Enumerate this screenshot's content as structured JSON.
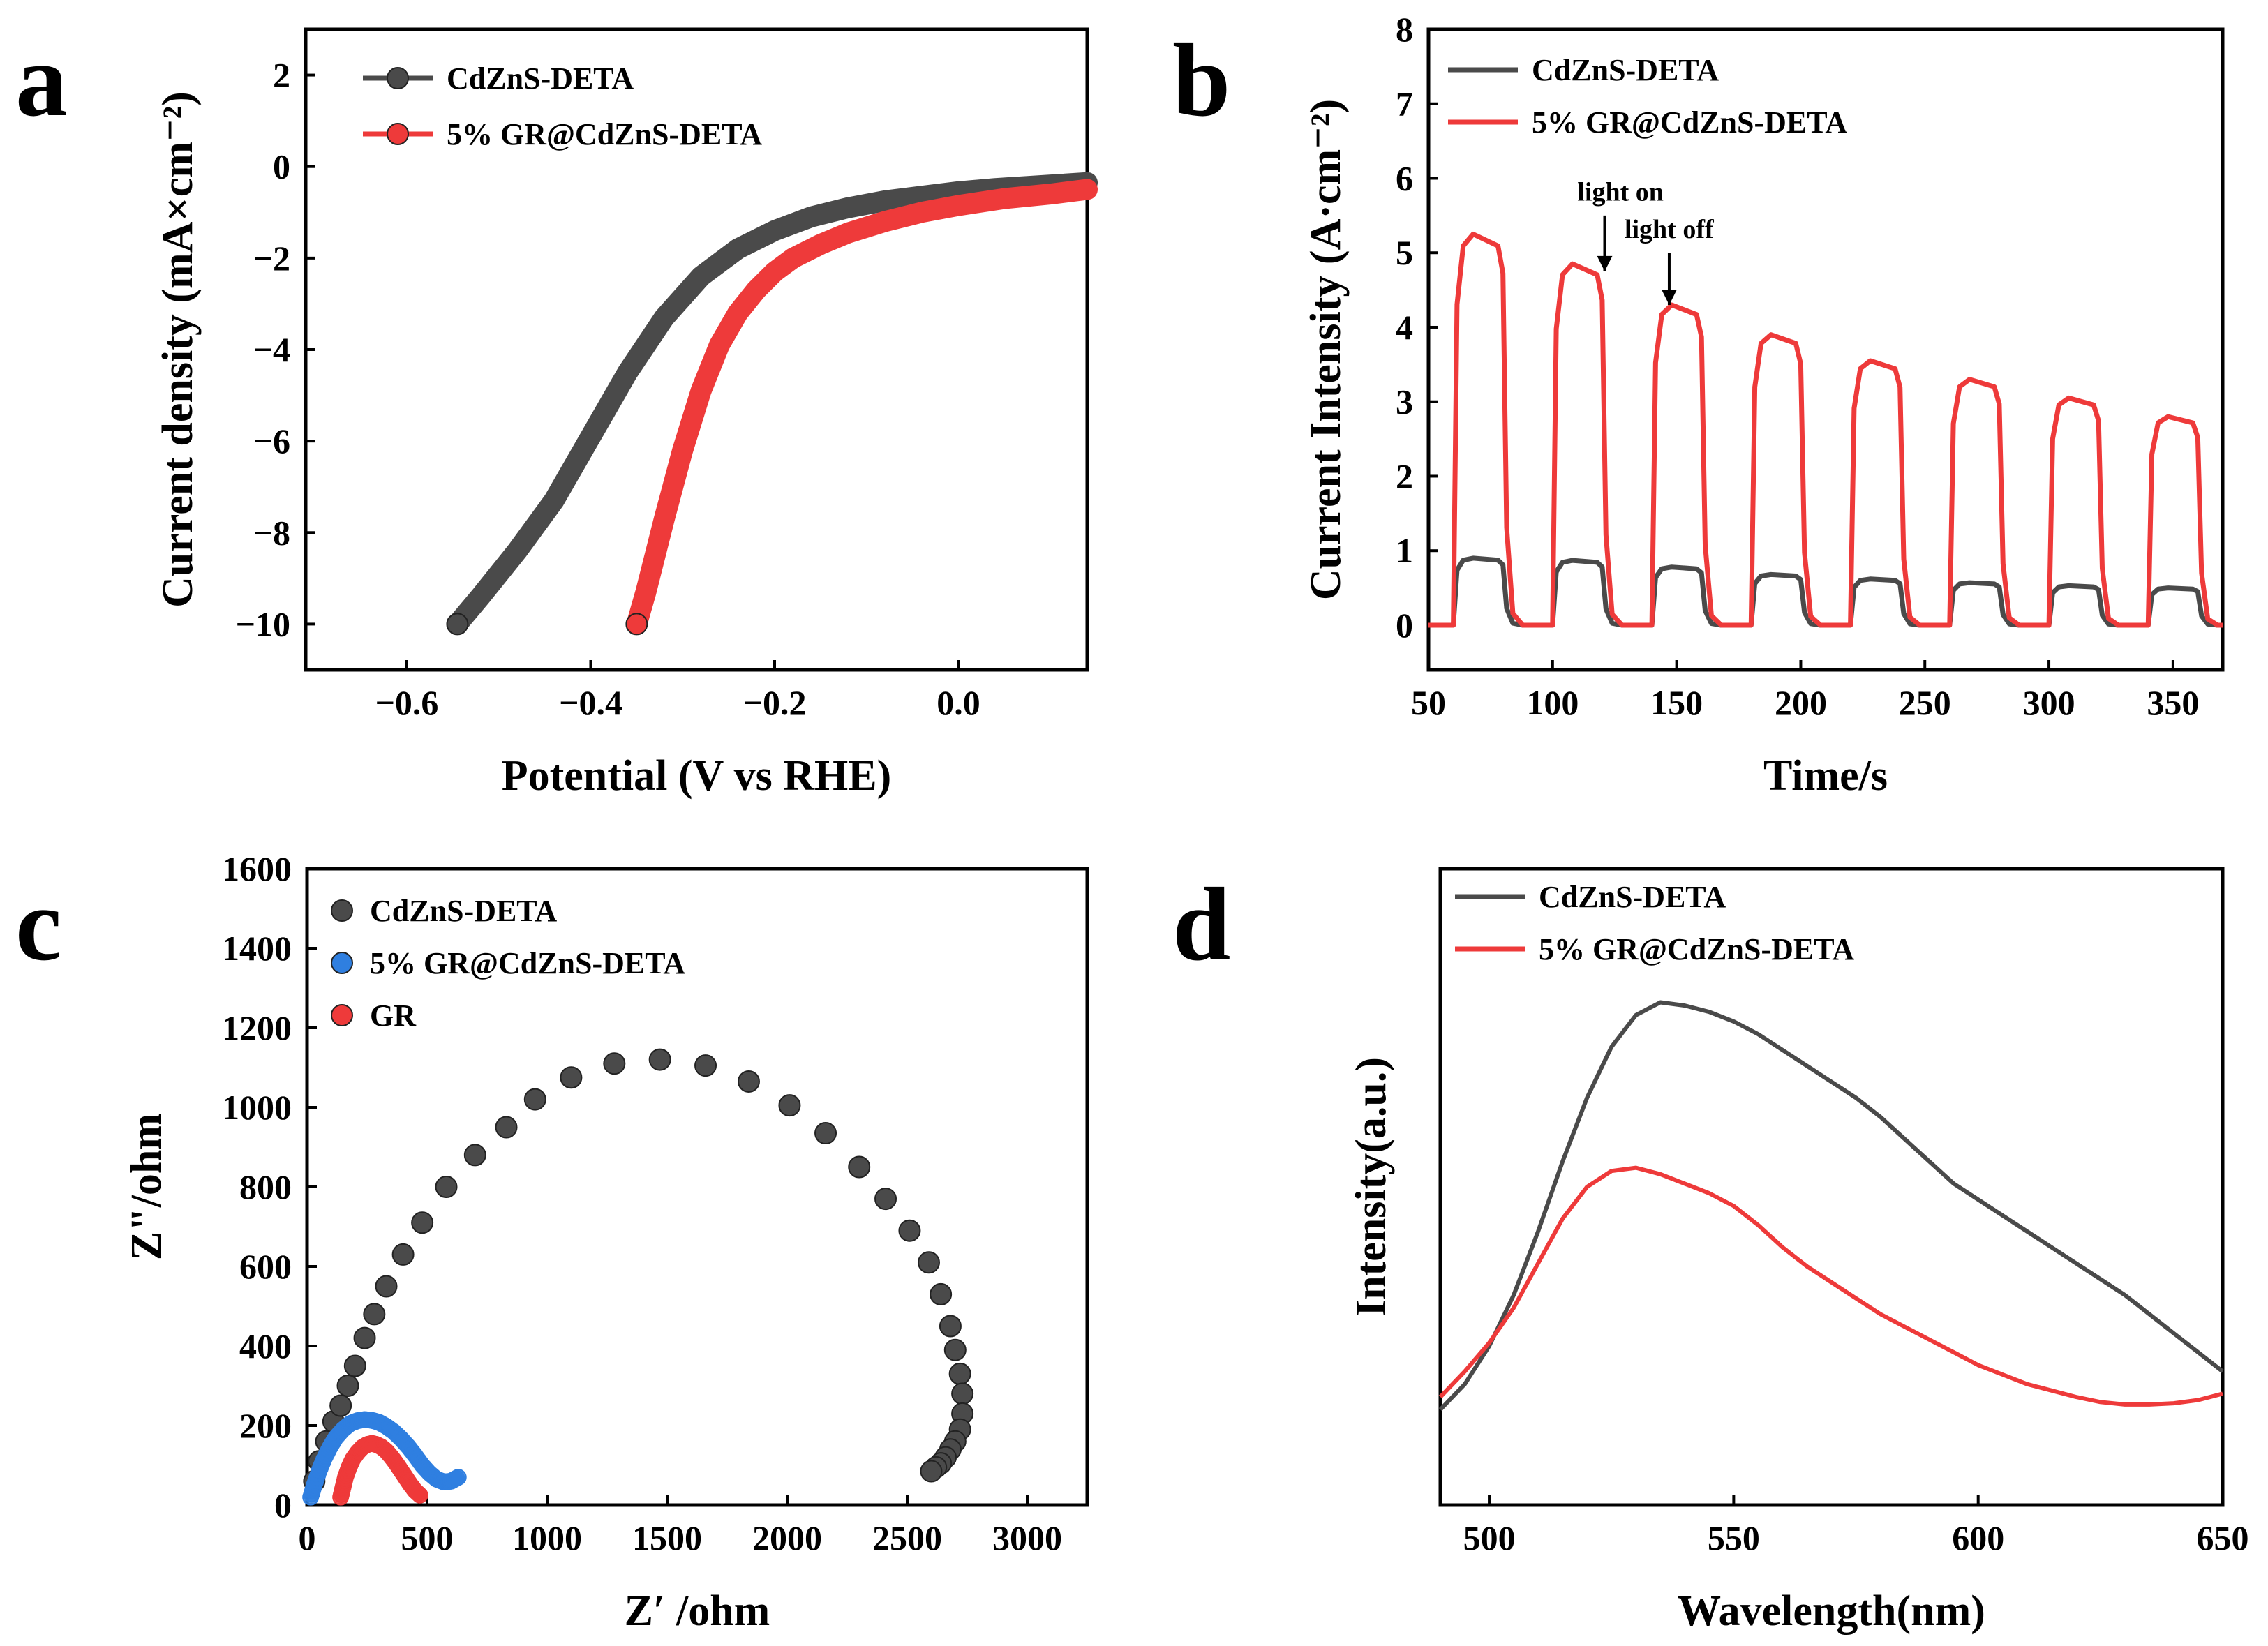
{
  "colors": {
    "gray": "#4a4a4a",
    "red": "#ee3a3a",
    "blue": "#2f7fe0",
    "frame": "#000000"
  },
  "chart_data": [
    {
      "panel": "a",
      "type": "line",
      "xlabel": "Potential (V vs RHE)",
      "ylabel": "Current density (mA×cm⁻²)",
      "xlim": [
        -0.71,
        0.14
      ],
      "ylim": [
        -11,
        3
      ],
      "xticks": [
        -0.6,
        -0.4,
        -0.2,
        0.0
      ],
      "xtick_labels": [
        "−0.6",
        "−0.4",
        "−0.2",
        "0.0"
      ],
      "yticks": [
        2,
        0,
        -2,
        -4,
        -6,
        -8,
        -10
      ],
      "ytick_labels": [
        "2",
        "0",
        "−2",
        "−4",
        "−6",
        "−8",
        "−10"
      ],
      "legend_position": "top-left",
      "series": [
        {
          "name": "CdZnS-DETA",
          "color": "gray",
          "x": [
            -0.545,
            -0.52,
            -0.48,
            -0.44,
            -0.4,
            -0.36,
            -0.32,
            -0.28,
            -0.24,
            -0.2,
            -0.16,
            -0.12,
            -0.08,
            -0.04,
            0.0,
            0.04,
            0.08,
            0.14
          ],
          "y": [
            -10.0,
            -9.4,
            -8.4,
            -7.3,
            -5.9,
            -4.5,
            -3.3,
            -2.4,
            -1.8,
            -1.4,
            -1.1,
            -0.9,
            -0.75,
            -0.65,
            -0.55,
            -0.48,
            -0.43,
            -0.35
          ]
        },
        {
          "name": "5% GR@CdZnS-DETA",
          "color": "red",
          "x": [
            -0.35,
            -0.34,
            -0.32,
            -0.3,
            -0.28,
            -0.26,
            -0.24,
            -0.22,
            -0.2,
            -0.18,
            -0.15,
            -0.12,
            -0.08,
            -0.04,
            0.0,
            0.05,
            0.1,
            0.14
          ],
          "y": [
            -10.0,
            -9.3,
            -7.7,
            -6.2,
            -4.9,
            -3.9,
            -3.2,
            -2.7,
            -2.3,
            -2.0,
            -1.7,
            -1.45,
            -1.2,
            -1.0,
            -0.85,
            -0.7,
            -0.6,
            -0.5
          ]
        }
      ]
    },
    {
      "panel": "b",
      "type": "line",
      "xlabel": "Time/s",
      "ylabel": "Current Intensity (A·cm⁻²)",
      "xlim": [
        50,
        370
      ],
      "ylim": [
        -0.6,
        8
      ],
      "xticks": [
        50,
        100,
        150,
        200,
        250,
        300,
        350
      ],
      "xtick_labels": [
        "50",
        "100",
        "150",
        "200",
        "250",
        "300",
        "350"
      ],
      "yticks": [
        0,
        1,
        2,
        3,
        4,
        5,
        6,
        7,
        8
      ],
      "ytick_labels": [
        "0",
        "1",
        "2",
        "3",
        "4",
        "5",
        "6",
        "7",
        "8"
      ],
      "legend_position": "top-left",
      "annotations": [
        {
          "text": "light on",
          "x": 121,
          "y": 4.75
        },
        {
          "text": "light off",
          "x": 147,
          "y": 4.3
        }
      ],
      "light_cycles": {
        "on_times": [
          60,
          100,
          140,
          180,
          220,
          260,
          300,
          340
        ],
        "duration": 20
      },
      "series": [
        {
          "name": "CdZnS-DETA",
          "color": "gray",
          "baseline": 0.0,
          "peak_values": [
            0.9,
            0.87,
            0.78,
            0.68,
            0.62,
            0.57,
            0.53,
            0.5
          ]
        },
        {
          "name": "5% GR@CdZnS-DETA",
          "color": "red",
          "baseline": 0.0,
          "peak_values": [
            5.25,
            4.85,
            4.3,
            3.9,
            3.55,
            3.3,
            3.05,
            2.8
          ]
        }
      ]
    },
    {
      "panel": "c",
      "type": "scatter",
      "xlabel": "Z′ /ohm",
      "ylabel": "Z\"/ohm",
      "xlim": [
        0,
        3250
      ],
      "ylim": [
        0,
        1600
      ],
      "xticks": [
        0,
        500,
        1000,
        1500,
        2000,
        2500,
        3000
      ],
      "xtick_labels": [
        "0",
        "500",
        "1000",
        "1500",
        "2000",
        "2500",
        "3000"
      ],
      "yticks": [
        0,
        200,
        400,
        600,
        800,
        1000,
        1200,
        1400,
        1600
      ],
      "ytick_labels": [
        "0",
        "200",
        "400",
        "600",
        "800",
        "1000",
        "1200",
        "1400",
        "1600"
      ],
      "legend_position": "top-left",
      "series": [
        {
          "name": "CdZnS-DETA",
          "color": "gray",
          "x": [
            30,
            50,
            80,
            110,
            140,
            170,
            200,
            240,
            280,
            330,
            400,
            480,
            580,
            700,
            830,
            950,
            1100,
            1280,
            1470,
            1660,
            1840,
            2010,
            2160,
            2300,
            2410,
            2510,
            2590,
            2640,
            2680,
            2700,
            2720,
            2730,
            2730,
            2720,
            2700,
            2680,
            2660,
            2640,
            2620,
            2600
          ],
          "y": [
            60,
            110,
            160,
            210,
            250,
            300,
            350,
            420,
            480,
            550,
            630,
            710,
            800,
            880,
            950,
            1020,
            1075,
            1110,
            1120,
            1105,
            1065,
            1005,
            935,
            850,
            770,
            690,
            610,
            530,
            450,
            390,
            330,
            280,
            230,
            190,
            160,
            140,
            120,
            105,
            95,
            85
          ]
        },
        {
          "name": "5% GR@CdZnS-DETA",
          "color": "blue",
          "x": [
            15,
            30,
            50,
            70,
            95,
            120,
            150,
            180,
            210,
            240,
            270,
            300,
            330,
            360,
            390,
            420,
            450,
            480,
            510,
            540,
            570,
            600,
            630
          ],
          "y": [
            20,
            50,
            85,
            115,
            145,
            170,
            190,
            205,
            212,
            215,
            213,
            208,
            198,
            185,
            168,
            148,
            125,
            100,
            80,
            65,
            58,
            60,
            70
          ]
        },
        {
          "name": "GR",
          "color": "red",
          "x": [
            140,
            150,
            160,
            175,
            190,
            210,
            230,
            250,
            270,
            290,
            310,
            330,
            350,
            370,
            390,
            410,
            430,
            450,
            470
          ],
          "y": [
            20,
            45,
            70,
            95,
            115,
            132,
            145,
            152,
            155,
            152,
            146,
            136,
            122,
            106,
            88,
            70,
            52,
            36,
            25
          ]
        }
      ]
    },
    {
      "panel": "d",
      "type": "line",
      "xlabel": "Wavelength(nm)",
      "ylabel": "Intensity(a.u.)",
      "xlim": [
        490,
        650
      ],
      "ylim": [
        0,
        1.0
      ],
      "xticks": [
        500,
        550,
        600,
        650
      ],
      "xtick_labels": [
        "500",
        "550",
        "600",
        "650"
      ],
      "yticks": [],
      "ytick_labels": [],
      "legend_position": "top-left",
      "series": [
        {
          "name": "CdZnS-DETA",
          "color": "gray",
          "x": [
            490,
            495,
            500,
            505,
            510,
            515,
            520,
            525,
            530,
            535,
            540,
            545,
            550,
            555,
            560,
            565,
            570,
            575,
            580,
            585,
            590,
            595,
            600,
            605,
            610,
            615,
            620,
            625,
            630,
            635,
            640,
            645,
            650
          ],
          "y": [
            0.15,
            0.19,
            0.25,
            0.33,
            0.43,
            0.54,
            0.64,
            0.72,
            0.77,
            0.79,
            0.785,
            0.775,
            0.76,
            0.74,
            0.715,
            0.69,
            0.665,
            0.64,
            0.61,
            0.575,
            0.54,
            0.505,
            0.48,
            0.455,
            0.43,
            0.405,
            0.38,
            0.355,
            0.33,
            0.3,
            0.27,
            0.24,
            0.21
          ]
        },
        {
          "name": "5% GR@CdZnS-DETA",
          "color": "red",
          "x": [
            490,
            495,
            500,
            505,
            510,
            515,
            520,
            525,
            530,
            535,
            540,
            545,
            550,
            555,
            560,
            565,
            570,
            575,
            580,
            585,
            590,
            595,
            600,
            605,
            610,
            615,
            620,
            625,
            630,
            635,
            640,
            645,
            650
          ],
          "y": [
            0.17,
            0.21,
            0.255,
            0.31,
            0.38,
            0.45,
            0.5,
            0.525,
            0.53,
            0.52,
            0.505,
            0.49,
            0.47,
            0.44,
            0.405,
            0.375,
            0.35,
            0.325,
            0.3,
            0.28,
            0.26,
            0.24,
            0.22,
            0.205,
            0.19,
            0.18,
            0.17,
            0.162,
            0.158,
            0.158,
            0.16,
            0.165,
            0.175
          ]
        }
      ]
    }
  ]
}
